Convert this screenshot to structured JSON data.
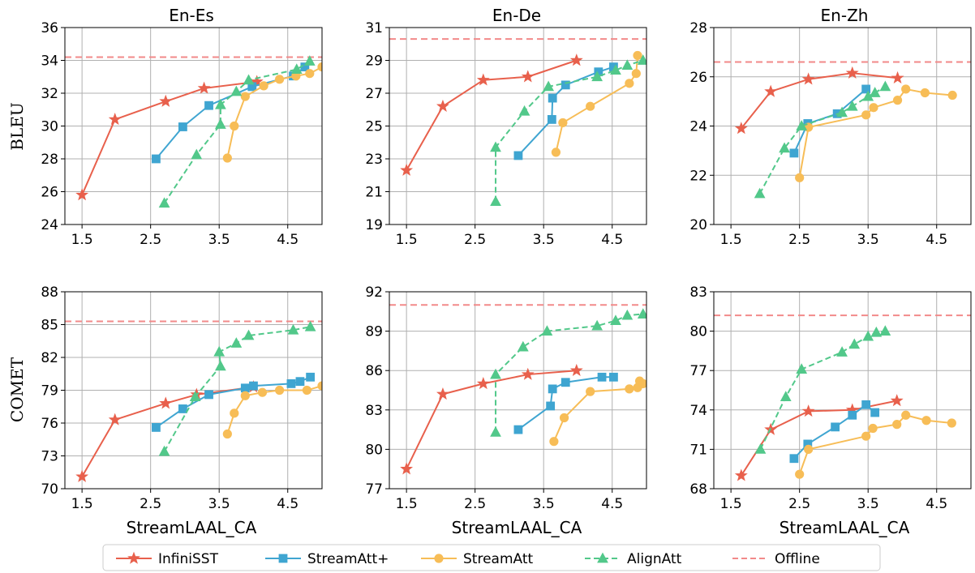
{
  "chart_data": {
    "type": "line",
    "xlabel": "StreamLAAL_CA",
    "xticks": [
      1.5,
      2.5,
      3.5,
      4.5
    ],
    "xlim": [
      1.25,
      5.0
    ],
    "colors": {
      "InfiniSST": "#e8604c",
      "StreamAtt+": "#3fa5d1",
      "StreamAtt": "#f7bd57",
      "AlignAtt": "#52c88a",
      "Offline": "#f28a8a"
    },
    "legend": [
      {
        "name": "InfiniSST",
        "marker": "star",
        "dash": false
      },
      {
        "name": "StreamAtt+",
        "marker": "square",
        "dash": false
      },
      {
        "name": "StreamAtt",
        "marker": "circle",
        "dash": false
      },
      {
        "name": "AlignAtt",
        "marker": "triangle",
        "dash": true
      },
      {
        "name": "Offline",
        "marker": "none",
        "dash": true
      }
    ],
    "rows": [
      {
        "ylabel": "BLEU"
      },
      {
        "ylabel": "COMET"
      }
    ],
    "columns": [
      {
        "title": "En-Es"
      },
      {
        "title": "En-De"
      },
      {
        "title": "En-Zh"
      }
    ],
    "panels": [
      {
        "row": 0,
        "col": 0,
        "ylim": [
          24,
          36
        ],
        "yticks": [
          24,
          26,
          28,
          30,
          32,
          34,
          36
        ],
        "offline": 34.2,
        "series": [
          {
            "name": "InfiniSST",
            "points": [
              [
                1.5,
                25.8
              ],
              [
                1.98,
                30.4
              ],
              [
                2.72,
                31.5
              ],
              [
                3.28,
                32.3
              ],
              [
                4.05,
                32.7
              ]
            ]
          },
          {
            "name": "StreamAtt+",
            "points": [
              [
                2.58,
                28.0
              ],
              [
                2.97,
                29.95
              ],
              [
                3.35,
                31.25
              ],
              [
                3.98,
                32.4
              ],
              [
                4.58,
                33.05
              ],
              [
                4.75,
                33.6
              ]
            ]
          },
          {
            "name": "StreamAtt",
            "points": [
              [
                3.62,
                28.05
              ],
              [
                3.72,
                30.0
              ],
              [
                3.88,
                31.8
              ],
              [
                4.15,
                32.45
              ],
              [
                4.38,
                32.85
              ],
              [
                4.62,
                33.05
              ],
              [
                4.82,
                33.2
              ],
              [
                5.0,
                33.6
              ]
            ]
          },
          {
            "name": "AlignAtt",
            "points": [
              [
                2.7,
                25.3
              ],
              [
                3.17,
                28.25
              ],
              [
                3.52,
                30.1
              ],
              [
                3.52,
                31.3
              ],
              [
                3.75,
                32.1
              ],
              [
                3.93,
                32.8
              ],
              [
                4.63,
                33.45
              ],
              [
                4.82,
                33.95
              ]
            ]
          }
        ]
      },
      {
        "row": 0,
        "col": 1,
        "ylim": [
          19,
          31
        ],
        "yticks": [
          19,
          21,
          23,
          25,
          27,
          29,
          31
        ],
        "offline": 30.3,
        "series": [
          {
            "name": "InfiniSST",
            "points": [
              [
                1.5,
                22.3
              ],
              [
                2.03,
                26.2
              ],
              [
                2.62,
                27.8
              ],
              [
                3.27,
                28.0
              ],
              [
                3.98,
                29.0
              ]
            ]
          },
          {
            "name": "StreamAtt+",
            "points": [
              [
                3.13,
                23.2
              ],
              [
                3.62,
                25.4
              ],
              [
                3.63,
                26.7
              ],
              [
                3.82,
                27.5
              ],
              [
                4.3,
                28.3
              ],
              [
                4.52,
                28.6
              ]
            ]
          },
          {
            "name": "StreamAtt",
            "points": [
              [
                3.68,
                23.4
              ],
              [
                3.78,
                25.2
              ],
              [
                4.18,
                26.2
              ],
              [
                4.75,
                27.6
              ],
              [
                4.85,
                28.2
              ],
              [
                4.87,
                29.3
              ]
            ]
          },
          {
            "name": "AlignAtt",
            "points": [
              [
                2.8,
                20.4
              ],
              [
                2.8,
                23.7
              ],
              [
                3.22,
                25.9
              ],
              [
                3.57,
                27.4
              ],
              [
                4.28,
                28.0
              ],
              [
                4.55,
                28.4
              ],
              [
                4.72,
                28.7
              ],
              [
                4.95,
                29.0
              ]
            ]
          }
        ]
      },
      {
        "row": 0,
        "col": 2,
        "ylim": [
          20,
          28
        ],
        "yticks": [
          20,
          22,
          24,
          26,
          28
        ],
        "offline": 26.6,
        "series": [
          {
            "name": "InfiniSST",
            "points": [
              [
                1.65,
                23.9
              ],
              [
                2.08,
                25.4
              ],
              [
                2.63,
                25.9
              ],
              [
                3.27,
                26.15
              ],
              [
                3.93,
                25.95
              ]
            ]
          },
          {
            "name": "StreamAtt+",
            "points": [
              [
                2.42,
                22.9
              ],
              [
                2.62,
                24.1
              ],
              [
                3.05,
                24.5
              ],
              [
                3.47,
                25.5
              ]
            ]
          },
          {
            "name": "StreamAtt",
            "points": [
              [
                2.5,
                21.9
              ],
              [
                2.63,
                23.95
              ],
              [
                3.47,
                24.45
              ],
              [
                3.58,
                24.75
              ],
              [
                3.93,
                25.05
              ],
              [
                4.05,
                25.5
              ],
              [
                4.33,
                25.35
              ],
              [
                4.73,
                25.25
              ]
            ]
          },
          {
            "name": "AlignAtt",
            "points": [
              [
                1.92,
                21.25
              ],
              [
                2.28,
                23.1
              ],
              [
                2.53,
                24.0
              ],
              [
                3.12,
                24.55
              ],
              [
                3.27,
                24.8
              ],
              [
                3.5,
                25.2
              ],
              [
                3.6,
                25.35
              ],
              [
                3.75,
                25.6
              ]
            ]
          }
        ]
      },
      {
        "row": 1,
        "col": 0,
        "ylim": [
          70,
          88
        ],
        "yticks": [
          70,
          73,
          76,
          79,
          82,
          85,
          88
        ],
        "offline": 85.3,
        "series": [
          {
            "name": "InfiniSST",
            "points": [
              [
                1.5,
                71.1
              ],
              [
                1.98,
                76.3
              ],
              [
                2.72,
                77.8
              ],
              [
                3.17,
                78.6
              ],
              [
                4.0,
                79.3
              ]
            ]
          },
          {
            "name": "StreamAtt+",
            "points": [
              [
                2.58,
                75.6
              ],
              [
                2.97,
                77.3
              ],
              [
                3.35,
                78.6
              ],
              [
                3.88,
                79.2
              ],
              [
                4.0,
                79.4
              ],
              [
                4.55,
                79.6
              ],
              [
                4.68,
                79.8
              ],
              [
                4.83,
                80.2
              ]
            ]
          },
          {
            "name": "StreamAtt",
            "points": [
              [
                3.62,
                75.0
              ],
              [
                3.72,
                76.9
              ],
              [
                3.88,
                78.5
              ],
              [
                4.13,
                78.8
              ],
              [
                4.38,
                79.0
              ],
              [
                4.78,
                79.0
              ],
              [
                5.0,
                79.4
              ]
            ]
          },
          {
            "name": "AlignAtt",
            "points": [
              [
                2.7,
                73.4
              ],
              [
                3.15,
                78.4
              ],
              [
                3.52,
                81.2
              ],
              [
                3.5,
                82.5
              ],
              [
                3.75,
                83.3
              ],
              [
                3.93,
                84.0
              ],
              [
                4.58,
                84.5
              ],
              [
                4.83,
                84.8
              ]
            ]
          }
        ]
      },
      {
        "row": 1,
        "col": 1,
        "ylim": [
          77,
          92
        ],
        "yticks": [
          77,
          80,
          83,
          86,
          89,
          92
        ],
        "offline": 91.0,
        "series": [
          {
            "name": "InfiniSST",
            "points": [
              [
                1.5,
                78.5
              ],
              [
                2.03,
                84.2
              ],
              [
                2.62,
                85.0
              ],
              [
                3.27,
                85.7
              ],
              [
                3.98,
                86.0
              ]
            ]
          },
          {
            "name": "StreamAtt+",
            "points": [
              [
                3.13,
                81.5
              ],
              [
                3.6,
                83.3
              ],
              [
                3.63,
                84.6
              ],
              [
                3.82,
                85.1
              ],
              [
                4.35,
                85.5
              ],
              [
                4.52,
                85.5
              ]
            ]
          },
          {
            "name": "StreamAtt",
            "points": [
              [
                3.65,
                80.6
              ],
              [
                3.8,
                82.4
              ],
              [
                4.18,
                84.4
              ],
              [
                4.75,
                84.6
              ],
              [
                4.87,
                84.7
              ],
              [
                4.9,
                85.2
              ],
              [
                4.95,
                85.0
              ]
            ]
          },
          {
            "name": "AlignAtt",
            "points": [
              [
                2.8,
                81.3
              ],
              [
                2.8,
                85.7
              ],
              [
                3.2,
                87.8
              ],
              [
                3.55,
                89.0
              ],
              [
                4.28,
                89.4
              ],
              [
                4.55,
                89.8
              ],
              [
                4.72,
                90.2
              ],
              [
                4.95,
                90.3
              ]
            ]
          }
        ]
      },
      {
        "row": 1,
        "col": 2,
        "ylim": [
          68,
          83
        ],
        "yticks": [
          68,
          71,
          74,
          77,
          80,
          83
        ],
        "offline": 81.2,
        "series": [
          {
            "name": "InfiniSST",
            "points": [
              [
                1.65,
                69.0
              ],
              [
                2.08,
                72.5
              ],
              [
                2.63,
                73.9
              ],
              [
                3.27,
                74.0
              ],
              [
                3.92,
                74.7
              ]
            ]
          },
          {
            "name": "StreamAtt+",
            "points": [
              [
                2.42,
                70.3
              ],
              [
                2.62,
                71.4
              ],
              [
                3.02,
                72.7
              ],
              [
                3.27,
                73.6
              ],
              [
                3.47,
                74.4
              ],
              [
                3.6,
                73.8
              ]
            ]
          },
          {
            "name": "StreamAtt",
            "points": [
              [
                2.5,
                69.1
              ],
              [
                2.63,
                71.0
              ],
              [
                3.47,
                72.0
              ],
              [
                3.57,
                72.6
              ],
              [
                3.92,
                72.9
              ],
              [
                4.05,
                73.6
              ],
              [
                4.35,
                73.2
              ],
              [
                4.72,
                73.0
              ]
            ]
          },
          {
            "name": "AlignAtt",
            "points": [
              [
                1.93,
                71.0
              ],
              [
                2.3,
                75.0
              ],
              [
                2.53,
                77.1
              ],
              [
                3.12,
                78.4
              ],
              [
                3.3,
                79.0
              ],
              [
                3.5,
                79.6
              ],
              [
                3.62,
                79.9
              ],
              [
                3.75,
                80.0
              ]
            ]
          }
        ]
      }
    ]
  }
}
